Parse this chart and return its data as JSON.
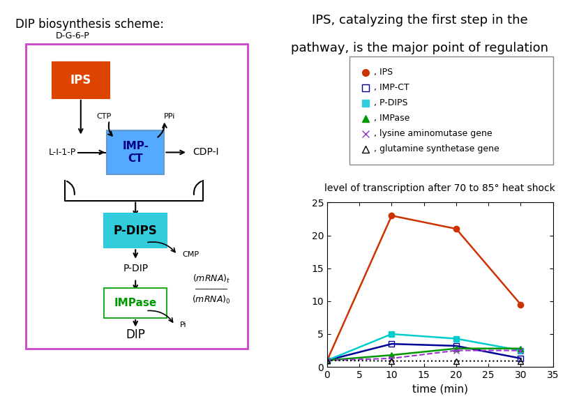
{
  "title_left": "DIP biosynthesis scheme:",
  "title_right_line1": "IPS, catalyzing the first step in the",
  "title_right_line2": "pathway, is the major point of regulation",
  "graph_title": "level of transcription after 70 to 85° heat shock",
  "xlabel": "time (min)",
  "series": {
    "IPS": {
      "x": [
        0,
        10,
        20,
        30
      ],
      "y": [
        1.0,
        23.0,
        21.0,
        9.5
      ],
      "color": "#cc3300",
      "marker": "o",
      "marker_fill": "#cc3300",
      "linestyle": "-",
      "linewidth": 1.8
    },
    "IMP-CT": {
      "x": [
        0,
        10,
        20,
        30
      ],
      "y": [
        1.0,
        3.5,
        3.2,
        1.3
      ],
      "color": "#000099",
      "marker": "s",
      "marker_fill": "none",
      "linestyle": "-",
      "linewidth": 1.8
    },
    "P-DIPS": {
      "x": [
        0,
        10,
        20,
        30
      ],
      "y": [
        1.0,
        5.0,
        4.3,
        2.5
      ],
      "color": "#00cccc",
      "marker": "s",
      "marker_fill": "#00cccc",
      "linestyle": "-",
      "linewidth": 1.8
    },
    "IMPase": {
      "x": [
        0,
        10,
        20,
        30
      ],
      "y": [
        1.0,
        1.8,
        2.8,
        2.8
      ],
      "color": "#009900",
      "marker": "^",
      "marker_fill": "#009900",
      "linestyle": "-",
      "linewidth": 1.8
    },
    "lysine aminomutase gene": {
      "x": [
        0,
        10,
        20,
        30
      ],
      "y": [
        1.0,
        1.3,
        2.5,
        2.5
      ],
      "color": "#9933cc",
      "marker": "x",
      "marker_fill": "#9933cc",
      "linestyle": "--",
      "linewidth": 1.5
    },
    "glutamine synthetase gene": {
      "x": [
        0,
        10,
        20,
        30
      ],
      "y": [
        1.0,
        0.9,
        0.9,
        0.9
      ],
      "color": "#000000",
      "marker": "^",
      "marker_fill": "none",
      "linestyle": ":",
      "linewidth": 1.5
    }
  },
  "xlim": [
    0,
    35
  ],
  "ylim": [
    0,
    25
  ],
  "xticks": [
    0,
    5,
    10,
    15,
    20,
    25,
    30,
    35
  ],
  "yticks": [
    0,
    5,
    10,
    15,
    20,
    25
  ],
  "box_color": "#cc44cc",
  "IPS_box_color": "#dd4400",
  "IPS_box_text_color": "#ffffff",
  "IMPCT_box_color": "#55aaff",
  "IMPCT_box_text_color": "#000088",
  "IMPCT_box_edge_color": "#6699cc",
  "PDIPS_box_color": "#33ccdd",
  "PDIPS_box_text_color": "#000000",
  "IMPase_box_color": "#ffffff",
  "IMPase_box_text_color": "#009900",
  "IMPase_box_edge_color": "#22aa22",
  "legend_items": [
    {
      "marker": "o",
      "color": "#cc3300",
      "fill": true,
      "label": ", IPS"
    },
    {
      "marker": "s",
      "color": "#000099",
      "fill": false,
      "label": ", IMP-CT"
    },
    {
      "marker": "s",
      "color": "#33ccdd",
      "fill": true,
      "label": ", P-DIPS"
    },
    {
      "marker": "^",
      "color": "#009900",
      "fill": true,
      "label": ", IMPase"
    },
    {
      "marker": "x",
      "color": "#9933cc",
      "fill": true,
      "label": ", lysine aminomutase gene"
    },
    {
      "marker": "^",
      "color": "#000000",
      "fill": false,
      "label": ", glutamine synthetase gene"
    }
  ]
}
